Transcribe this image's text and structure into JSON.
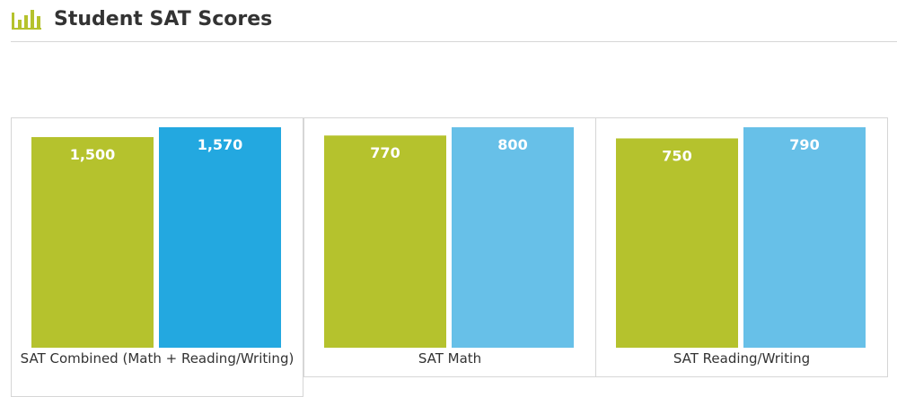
{
  "title": "Student SAT Scores",
  "header_icon": "bar-chart-icon",
  "colors": {
    "accent": "#b5c22d",
    "student": "#b5c22d",
    "comparison_combined": "#23a8e0",
    "comparison": "#67c0e8",
    "divider": "#d6d6d6"
  },
  "chart_data": [
    {
      "type": "bar",
      "category_label": "SAT Combined (Math + Reading/Writing)",
      "values": [
        1500,
        1570
      ],
      "value_labels": [
        "1,500",
        "1,570"
      ],
      "ylim": [
        0,
        1570
      ]
    },
    {
      "type": "bar",
      "category_label": "SAT Math",
      "values": [
        770,
        800
      ],
      "value_labels": [
        "770",
        "800"
      ],
      "ylim": [
        0,
        800
      ]
    },
    {
      "type": "bar",
      "category_label": "SAT Reading/Writing",
      "values": [
        750,
        790
      ],
      "value_labels": [
        "750",
        "790"
      ],
      "ylim": [
        0,
        790
      ]
    }
  ]
}
